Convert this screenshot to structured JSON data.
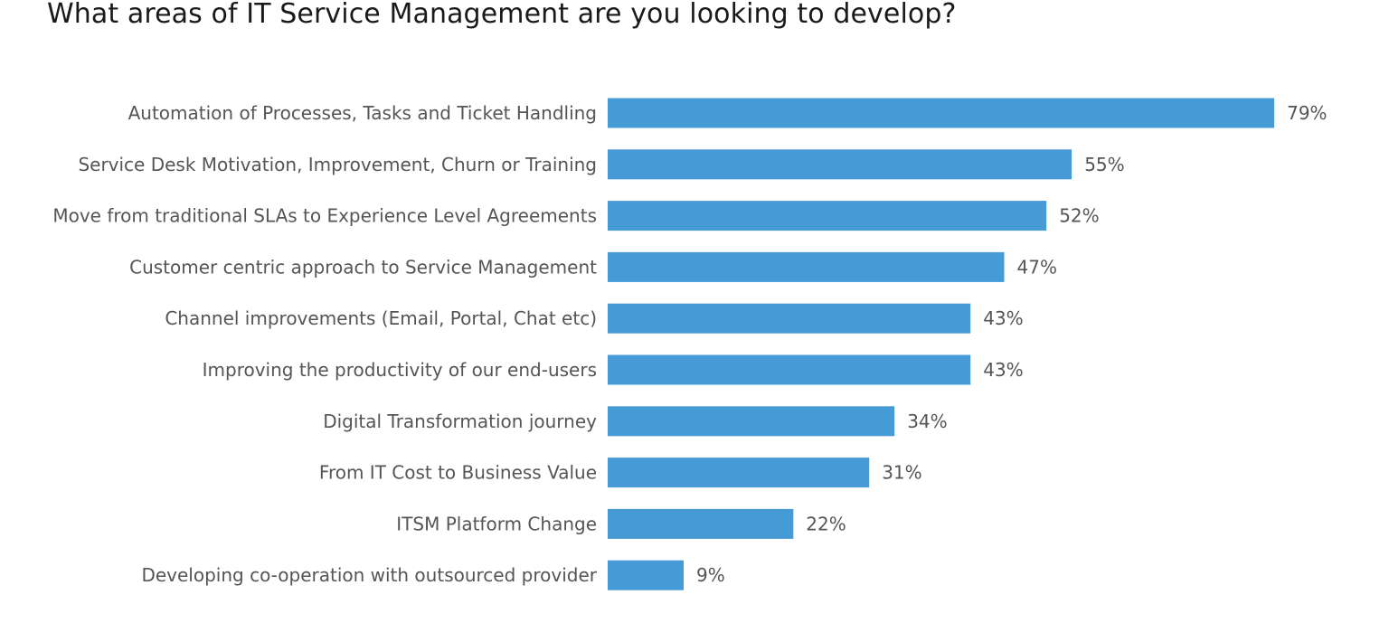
{
  "chart_data": {
    "type": "bar",
    "orientation": "horizontal",
    "title": "What areas of IT Service Management are you looking to develop?",
    "categories": [
      "Automation of Processes, Tasks and Ticket Handling",
      "Service Desk Motivation, Improvement, Churn or Training",
      "Move from traditional SLAs to Experience Level Agreements",
      "Customer centric approach to Service Management",
      "Channel improvements (Email, Portal, Chat etc)",
      "Improving the productivity of our end-users",
      "Digital Transformation journey",
      "From IT Cost to Business Value",
      "ITSM Platform Change",
      "Developing co-operation with outsourced provider"
    ],
    "values": [
      79,
      55,
      52,
      47,
      43,
      43,
      34,
      31,
      22,
      9
    ],
    "value_labels": [
      "79%",
      "55%",
      "52%",
      "47%",
      "43%",
      "43%",
      "34%",
      "31%",
      "22%",
      "9%"
    ],
    "unit": "%",
    "xlim": [
      0,
      100
    ],
    "grid": false,
    "legend": "none",
    "bar_color": "#469bd7"
  }
}
